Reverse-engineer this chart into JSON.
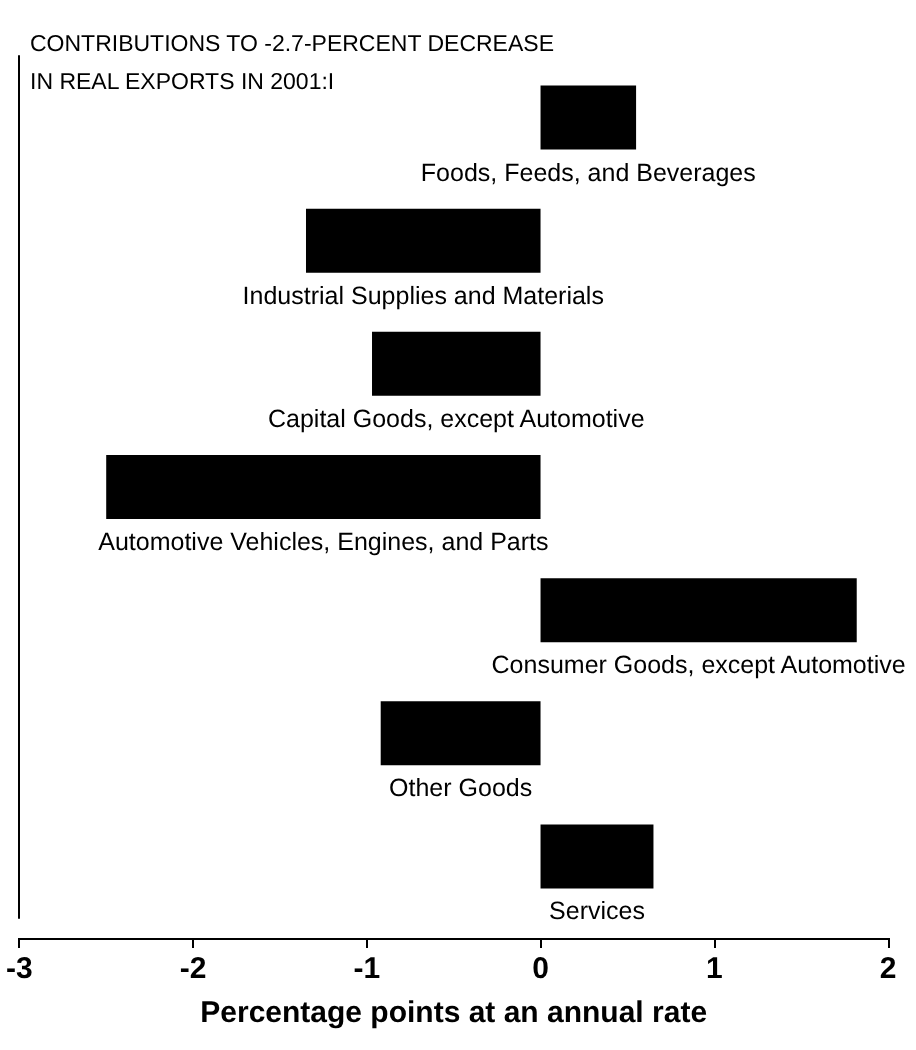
{
  "chart_data": {
    "type": "bar",
    "orientation": "horizontal",
    "title": "CONTRIBUTIONS TO -2.7-PERCENT DECREASE\nIN REAL EXPORTS IN 2001:I",
    "xlabel": "Percentage points at an annual rate",
    "categories": [
      "Foods, Feeds, and Beverages",
      "Industrial Supplies and Materials",
      "Capital Goods, except Automotive",
      "Automotive Vehicles, Engines, and Parts",
      "Consumer Goods, except Automotive",
      "Other Goods",
      "Services"
    ],
    "values": [
      0.55,
      -1.35,
      -0.97,
      -2.5,
      1.82,
      -0.92,
      0.65
    ],
    "color": "#000000",
    "xlim": [
      -3,
      2
    ],
    "xticks": [
      -3,
      -2,
      -1,
      0,
      1,
      2
    ],
    "grid": false
  }
}
